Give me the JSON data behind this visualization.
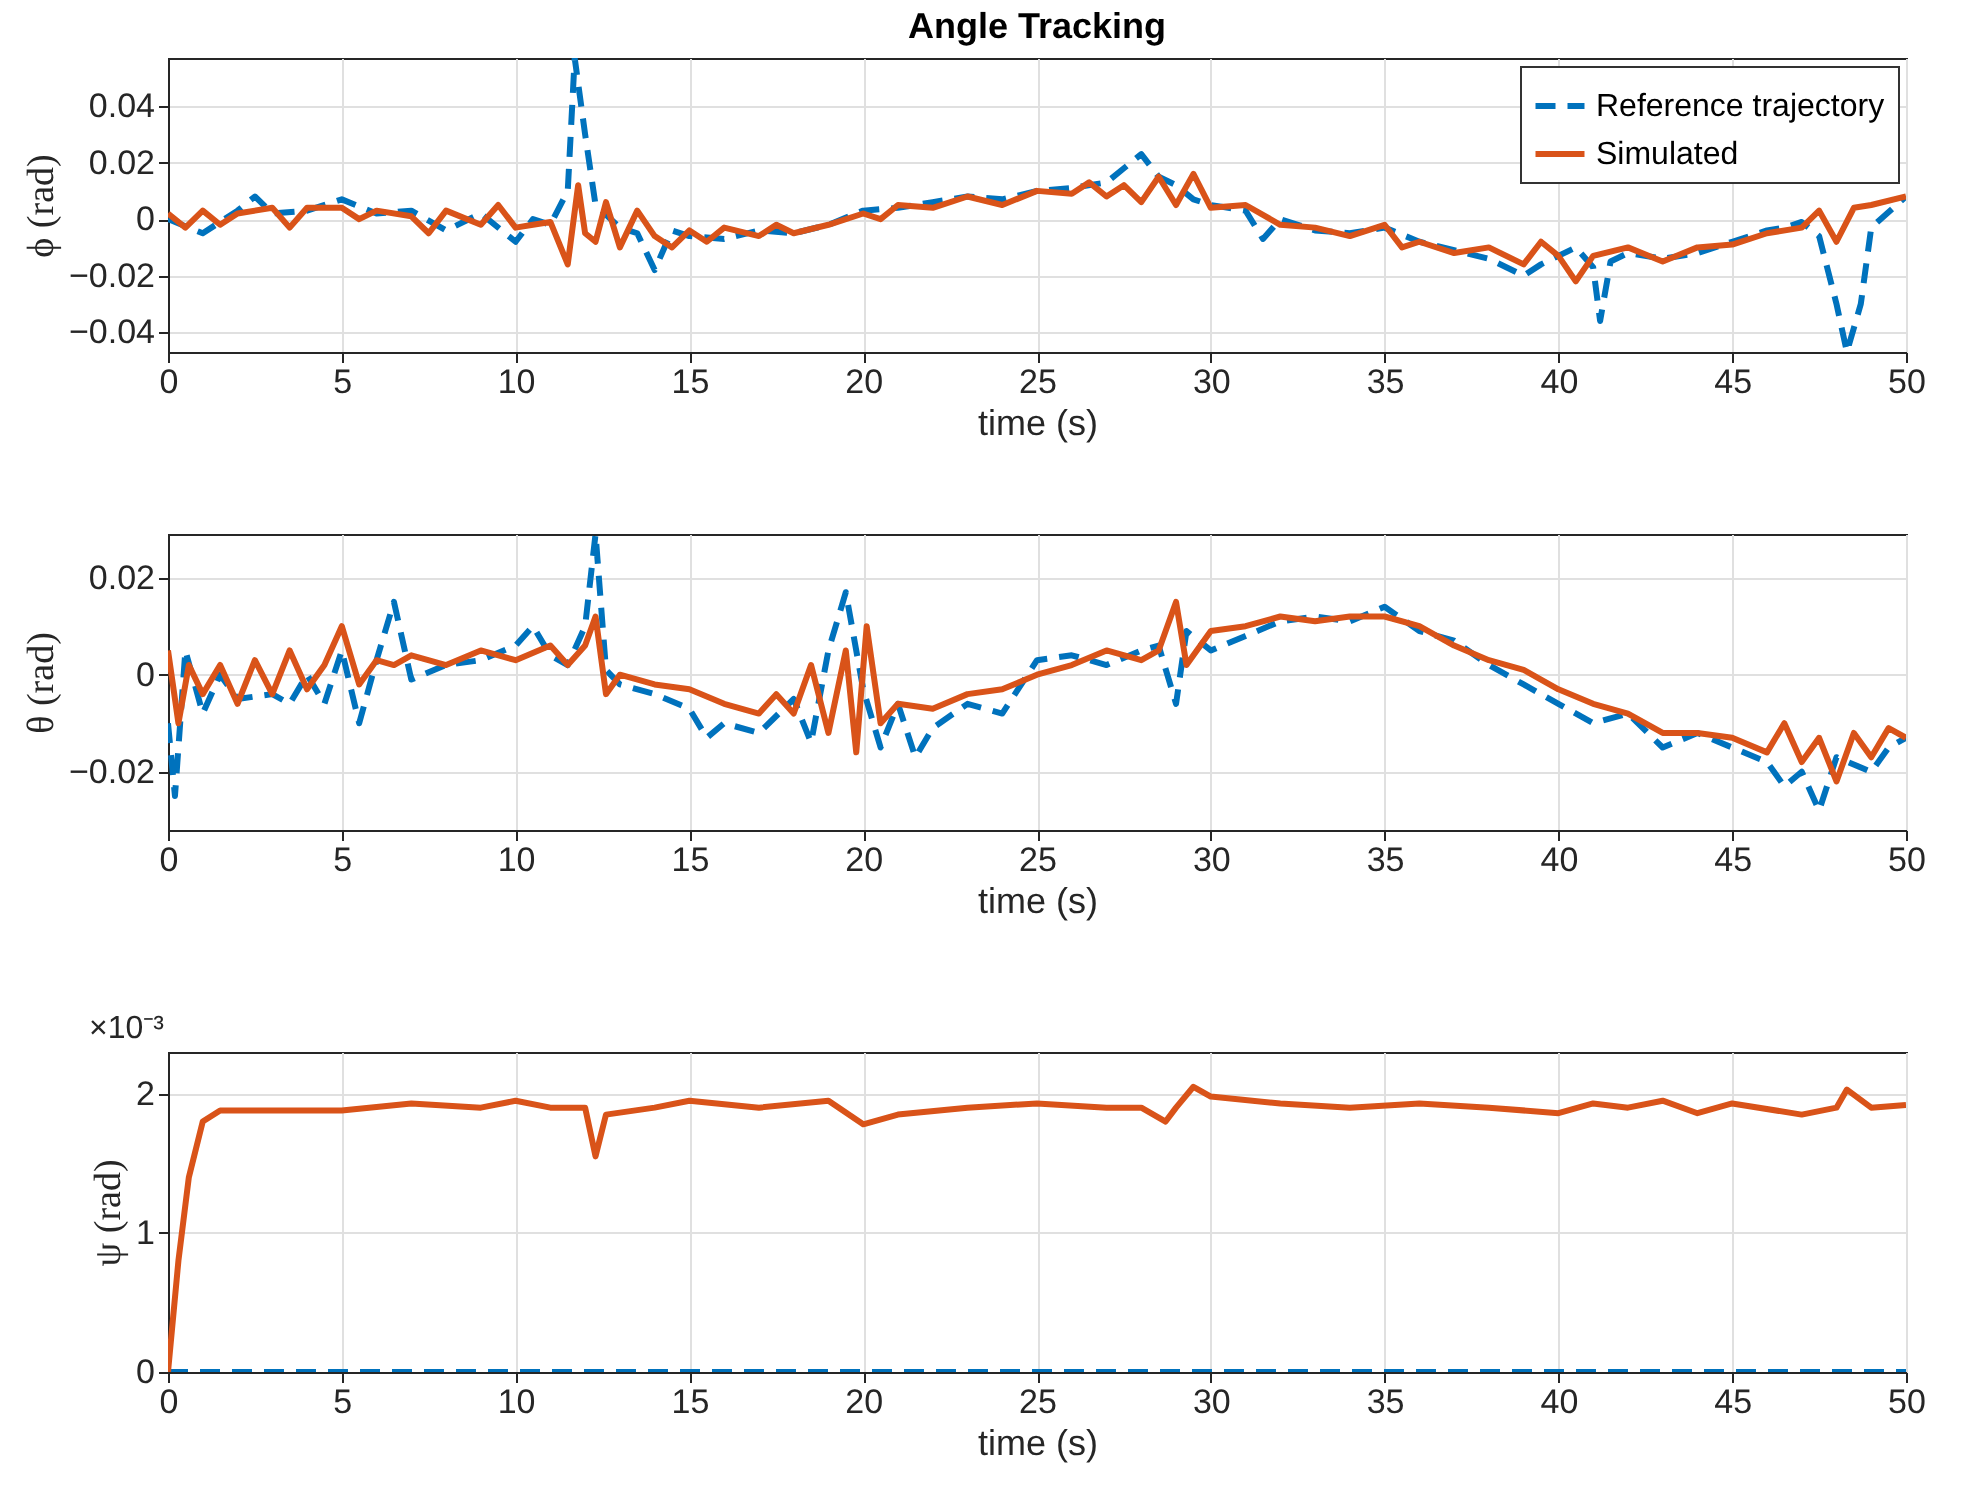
{
  "chart_data": [
    {
      "type": "line",
      "title": "Angle Tracking",
      "xlabel": "time (s)",
      "ylabel": "ϕ (rad)",
      "xlim": [
        0,
        50
      ],
      "xticks": [
        0,
        5,
        10,
        15,
        20,
        25,
        30,
        35,
        40,
        45,
        50
      ],
      "ylim": [
        -0.047,
        0.057
      ],
      "yticks": [
        -0.04,
        -0.02,
        0,
        0.02,
        0.04
      ],
      "grid": true,
      "legend": "top right",
      "series": [
        {
          "name": "Reference trajectory",
          "color": "#0072bd",
          "line_style": "dashed",
          "x": [
            0,
            1,
            2,
            2.5,
            3,
            4,
            5,
            6,
            7,
            8,
            9,
            10,
            10.5,
            11,
            11.5,
            11.7,
            12,
            12.3,
            13,
            13.5,
            14,
            14.5,
            15,
            16,
            17,
            18,
            19,
            20,
            21,
            22,
            23,
            24,
            25,
            26,
            27,
            27.5,
            28,
            28.5,
            29,
            29.5,
            30,
            31,
            31.5,
            32,
            33,
            34,
            35,
            36,
            37,
            38,
            39,
            39.5,
            40,
            40.5,
            41,
            41.2,
            41.5,
            42,
            43,
            44,
            45,
            46,
            46.5,
            47,
            47.5,
            48,
            48.3,
            48.7,
            49,
            50
          ],
          "values": [
            0,
            -0.005,
            0.003,
            0.008,
            0.002,
            0.003,
            0.007,
            0.002,
            0.003,
            -0.004,
            0.002,
            -0.008,
            0,
            -0.002,
            0.01,
            0.057,
            0.03,
            0.005,
            -0.003,
            -0.005,
            -0.018,
            -0.004,
            -0.006,
            -0.007,
            -0.004,
            -0.005,
            -0.002,
            0.003,
            0.004,
            0.006,
            0.008,
            0.007,
            0.01,
            0.011,
            0.013,
            0.018,
            0.023,
            0.015,
            0.012,
            0.007,
            0.005,
            0.003,
            -0.007,
            0,
            -0.004,
            -0.005,
            -0.003,
            -0.008,
            -0.011,
            -0.014,
            -0.02,
            -0.016,
            -0.013,
            -0.01,
            -0.017,
            -0.036,
            -0.015,
            -0.012,
            -0.014,
            -0.012,
            -0.008,
            -0.004,
            -0.003,
            -0.001,
            -0.006,
            -0.03,
            -0.047,
            -0.03,
            -0.003,
            0.008
          ]
        },
        {
          "name": "Simulated",
          "color": "#d95319",
          "line_style": "solid",
          "x": [
            0,
            0.5,
            1,
            1.5,
            2,
            3,
            3.5,
            4,
            5,
            5.5,
            6,
            7,
            7.5,
            8,
            9,
            9.5,
            10,
            10.5,
            11,
            11.5,
            11.8,
            12,
            12.3,
            12.6,
            13,
            13.5,
            14,
            14.5,
            15,
            15.5,
            16,
            17,
            17.5,
            18,
            19,
            20,
            20.5,
            21,
            22,
            23,
            24,
            25,
            26,
            26.5,
            27,
            27.5,
            28,
            28.5,
            29,
            29.5,
            30,
            31,
            32,
            33,
            34,
            35,
            35.5,
            36,
            37,
            38,
            39,
            39.5,
            40,
            40.5,
            41,
            42,
            43,
            44,
            45,
            46,
            47,
            47.5,
            48,
            48.5,
            49,
            50
          ],
          "values": [
            0.002,
            -0.003,
            0.003,
            -0.002,
            0.002,
            0.004,
            -0.003,
            0.004,
            0.004,
            0,
            0.003,
            0.001,
            -0.005,
            0.003,
            -0.002,
            0.005,
            -0.003,
            -0.002,
            -0.001,
            -0.016,
            0.012,
            -0.005,
            -0.008,
            0.006,
            -0.01,
            0.003,
            -0.006,
            -0.01,
            -0.004,
            -0.008,
            -0.003,
            -0.006,
            -0.002,
            -0.005,
            -0.002,
            0.002,
            0,
            0.005,
            0.004,
            0.008,
            0.005,
            0.01,
            0.009,
            0.013,
            0.008,
            0.012,
            0.006,
            0.015,
            0.005,
            0.016,
            0.004,
            0.005,
            -0.002,
            -0.003,
            -0.006,
            -0.002,
            -0.01,
            -0.008,
            -0.012,
            -0.01,
            -0.016,
            -0.008,
            -0.013,
            -0.022,
            -0.013,
            -0.01,
            -0.015,
            -0.01,
            -0.009,
            -0.005,
            -0.003,
            0.003,
            -0.008,
            0.004,
            0.005,
            0.008
          ]
        }
      ]
    },
    {
      "type": "line",
      "xlabel": "time (s)",
      "ylabel": "θ (rad)",
      "xlim": [
        0,
        50
      ],
      "xticks": [
        0,
        5,
        10,
        15,
        20,
        25,
        30,
        35,
        40,
        45,
        50
      ],
      "ylim": [
        -0.032,
        0.029
      ],
      "yticks": [
        -0.02,
        0,
        0.02
      ],
      "grid": true,
      "series": [
        {
          "color": "#0072bd",
          "line_style": "dashed",
          "x": [
            0,
            0.2,
            0.5,
            1,
            1.5,
            2,
            3,
            3.5,
            4,
            4.5,
            5,
            5.5,
            6,
            6.5,
            7,
            8,
            9,
            10,
            10.5,
            11,
            11.5,
            12,
            12.3,
            12.6,
            13,
            14,
            15,
            15.5,
            16,
            17,
            18,
            18.5,
            19,
            19.5,
            20,
            20.5,
            21,
            21.5,
            22,
            23,
            24,
            25,
            26,
            27,
            28,
            28.5,
            29,
            29.3,
            30,
            31,
            32,
            33,
            34,
            35,
            36,
            37,
            38,
            39,
            40,
            41,
            42,
            43,
            44,
            45,
            46,
            46.5,
            47,
            47.5,
            48,
            49,
            49.5,
            50
          ],
          "values": [
            -0.01,
            -0.025,
            0.005,
            -0.008,
            0,
            -0.005,
            -0.004,
            -0.006,
            0,
            -0.006,
            0.005,
            -0.01,
            0.003,
            0.015,
            -0.001,
            0.002,
            0.003,
            0.006,
            0.01,
            0.004,
            0.002,
            0.01,
            0.029,
            0.001,
            -0.002,
            -0.004,
            -0.007,
            -0.013,
            -0.01,
            -0.012,
            -0.005,
            -0.014,
            0.005,
            0.017,
            -0.003,
            -0.015,
            -0.006,
            -0.017,
            -0.011,
            -0.006,
            -0.008,
            0.003,
            0.004,
            0.002,
            0.005,
            0.006,
            -0.006,
            0.009,
            0.005,
            0.008,
            0.011,
            0.012,
            0.011,
            0.014,
            0.009,
            0.007,
            0.002,
            -0.002,
            -0.006,
            -0.01,
            -0.008,
            -0.015,
            -0.012,
            -0.015,
            -0.018,
            -0.023,
            -0.02,
            -0.028,
            -0.017,
            -0.02,
            -0.015,
            -0.013
          ]
        },
        {
          "color": "#d95319",
          "line_style": "solid",
          "x": [
            0,
            0.3,
            0.6,
            1,
            1.5,
            2,
            2.5,
            3,
            3.5,
            4,
            4.5,
            5,
            5.5,
            6,
            6.5,
            7,
            8,
            9,
            10,
            11,
            11.5,
            12,
            12.3,
            12.6,
            13,
            14,
            15,
            16,
            17,
            17.5,
            18,
            18.5,
            19,
            19.5,
            19.8,
            20.1,
            20.5,
            21,
            22,
            23,
            24,
            25,
            26,
            27,
            28,
            28.5,
            29,
            29.3,
            30,
            31,
            32,
            33,
            34,
            35,
            36,
            37,
            38,
            39,
            40,
            41,
            42,
            43,
            44,
            45,
            46,
            46.5,
            47,
            47.5,
            48,
            48.5,
            49,
            49.5,
            50
          ],
          "values": [
            0.005,
            -0.01,
            0.002,
            -0.004,
            0.002,
            -0.006,
            0.003,
            -0.004,
            0.005,
            -0.003,
            0.002,
            0.01,
            -0.002,
            0.003,
            0.002,
            0.004,
            0.002,
            0.005,
            0.003,
            0.006,
            0.002,
            0.006,
            0.012,
            -0.004,
            0,
            -0.002,
            -0.003,
            -0.006,
            -0.008,
            -0.004,
            -0.008,
            0.002,
            -0.012,
            0.005,
            -0.016,
            0.01,
            -0.01,
            -0.006,
            -0.007,
            -0.004,
            -0.003,
            0,
            0.002,
            0.005,
            0.003,
            0.005,
            0.015,
            0.002,
            0.009,
            0.01,
            0.012,
            0.011,
            0.012,
            0.012,
            0.01,
            0.006,
            0.003,
            0.001,
            -0.003,
            -0.006,
            -0.008,
            -0.012,
            -0.012,
            -0.013,
            -0.016,
            -0.01,
            -0.018,
            -0.013,
            -0.022,
            -0.012,
            -0.017,
            -0.011,
            -0.013
          ]
        }
      ]
    },
    {
      "type": "line",
      "xlabel": "time (s)",
      "ylabel": "ψ (rad)",
      "annotations": [
        "×10⁻³"
      ],
      "xlim": [
        0,
        50
      ],
      "xticks": [
        0,
        5,
        10,
        15,
        20,
        25,
        30,
        35,
        40,
        45,
        50
      ],
      "ylim": [
        0,
        2.3
      ],
      "yticks": [
        0,
        1,
        2
      ],
      "grid": true,
      "series": [
        {
          "color": "#0072bd",
          "line_style": "dashed",
          "x": [
            0,
            50
          ],
          "values": [
            0,
            0
          ]
        },
        {
          "color": "#d95319",
          "line_style": "solid",
          "x": [
            0,
            0.3,
            0.6,
            1,
            1.5,
            3,
            5,
            7,
            9,
            10,
            11,
            12,
            12.3,
            12.6,
            14,
            15,
            17,
            19,
            20,
            21,
            23,
            25,
            27,
            28,
            28.7,
            29,
            29.5,
            30,
            32,
            34,
            36,
            38,
            40,
            41,
            42,
            43,
            44,
            45,
            47,
            48,
            48.3,
            49,
            50
          ],
          "values": [
            0,
            0.8,
            1.4,
            1.8,
            1.88,
            1.88,
            1.88,
            1.93,
            1.9,
            1.95,
            1.9,
            1.9,
            1.55,
            1.85,
            1.9,
            1.95,
            1.9,
            1.95,
            1.78,
            1.85,
            1.9,
            1.93,
            1.9,
            1.9,
            1.8,
            1.9,
            2.05,
            1.98,
            1.93,
            1.9,
            1.93,
            1.9,
            1.86,
            1.93,
            1.9,
            1.95,
            1.86,
            1.93,
            1.85,
            1.9,
            2.03,
            1.9,
            1.92
          ]
        }
      ]
    }
  ]
}
